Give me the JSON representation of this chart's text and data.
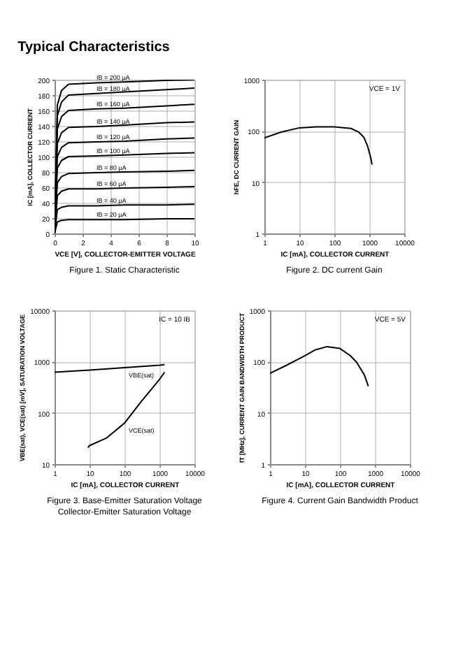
{
  "chart_data": [
    {
      "type": "line",
      "title": "Figure 1. Static Characteristic",
      "xlabel": "VCE [V], COLLECTOR-EMITTER VOLTAGE",
      "ylabel": "IC [mA], COLLECTOR CURRENT",
      "annotations": [
        "Typical Characteristics"
      ],
      "xlim": [
        0,
        10
      ],
      "ylim": [
        0,
        200
      ],
      "xticks": [
        0,
        2,
        4,
        6,
        8,
        10
      ],
      "yticks": [
        0,
        20,
        40,
        60,
        80,
        100,
        120,
        140,
        160,
        180,
        200
      ],
      "grid": true,
      "x": [
        0,
        0.2,
        0.5,
        1,
        3,
        5,
        8,
        10
      ],
      "series": [
        {
          "name": "IB = 20 µA",
          "color": "#000000",
          "values": [
            0,
            15,
            17,
            18,
            18,
            18,
            19,
            19
          ]
        },
        {
          "name": "IB = 40 µA",
          "color": "#000000",
          "values": [
            0,
            31,
            34,
            36,
            36,
            37,
            37,
            38
          ]
        },
        {
          "name": "IB = 60 µA",
          "color": "#000000",
          "values": [
            0,
            49,
            55,
            58,
            58,
            59,
            60,
            61
          ]
        },
        {
          "name": "IB = 80 µA",
          "color": "#000000",
          "values": [
            0,
            66,
            74,
            78,
            79,
            80,
            81,
            82
          ]
        },
        {
          "name": "IB = 100 µA",
          "color": "#000000",
          "values": [
            0,
            85,
            95,
            100,
            101,
            102,
            104,
            105
          ]
        },
        {
          "name": "IB = 120 µA",
          "color": "#000000",
          "values": [
            0,
            100,
            112,
            118,
            119,
            120,
            123,
            124
          ]
        },
        {
          "name": "IB = 140 µA",
          "color": "#000000",
          "values": [
            0,
            117,
            131,
            138,
            139,
            141,
            144,
            145
          ]
        },
        {
          "name": "IB = 160 µA",
          "color": "#000000",
          "values": [
            0,
            136,
            152,
            160,
            162,
            163,
            166,
            168
          ]
        },
        {
          "name": "IB = 180 µA",
          "color": "#000000",
          "values": [
            0,
            153,
            171,
            180,
            182,
            184,
            187,
            189
          ]
        },
        {
          "name": "IB = 200 µA",
          "color": "#000000",
          "values": [
            0,
            167,
            186,
            194,
            196,
            197,
            199,
            200
          ]
        }
      ]
    },
    {
      "type": "line",
      "title": "Figure 2. DC current Gain",
      "xlabel": "IC [mA], COLLECTOR CURRENT",
      "ylabel": "hFE, DC CURRENT GAIN",
      "annotations": [
        "VCE = 1V"
      ],
      "xlim": [
        1,
        10000
      ],
      "ylim": [
        1,
        1000
      ],
      "xticks": [
        1,
        10,
        100,
        1000,
        10000
      ],
      "yticks": [
        1,
        10,
        100,
        1000
      ],
      "log": "xy",
      "grid": true,
      "series": [
        {
          "color": "#000000",
          "x": [
            1,
            3,
            10,
            30,
            100,
            300,
            500,
            700,
            900,
            1100,
            1200
          ],
          "values": [
            73,
            95,
            115,
            120,
            120,
            112,
            95,
            75,
            50,
            30,
            22
          ]
        }
      ]
    },
    {
      "type": "line",
      "title": "Figure 3. Base-Emitter Saturation Voltage\nCollector-Emitter Saturation Voltage",
      "xlabel": "IC [mA], COLLECTOR CURRENT",
      "ylabel": "VBE(sat), VCE(sat) [mV], SATURATION VOLTAGE",
      "annotations": [
        "IC = 10 IB"
      ],
      "xlim": [
        1,
        10000
      ],
      "ylim": [
        10,
        10000
      ],
      "xticks": [
        1,
        10,
        100,
        1000,
        10000
      ],
      "yticks": [
        10,
        100,
        1000,
        10000
      ],
      "log": "xy",
      "grid": true,
      "series": [
        {
          "name": "VBE(sat)",
          "color": "#000000",
          "x": [
            1,
            10,
            100,
            1000,
            1400
          ],
          "values": [
            620,
            680,
            760,
            850,
            870
          ]
        },
        {
          "name": "VCE(sat)",
          "color": "#000000",
          "x": [
            9,
            10,
            30,
            100,
            300,
            1000,
            1400
          ],
          "values": [
            21,
            23,
            32,
            63,
            166,
            450,
            620
          ]
        }
      ]
    },
    {
      "type": "line",
      "title": "Figure 4. Current Gain Bandwidth Product",
      "xlabel": "IC [mA], COLLECTOR CURRENT",
      "ylabel": "fT [MHz], CURRENT GAIN BANDWIDTH PRODUCT",
      "annotations": [
        "VCE = 5V"
      ],
      "xlim": [
        1,
        10000
      ],
      "ylim": [
        1,
        1000
      ],
      "xticks": [
        1,
        10,
        100,
        1000,
        10000
      ],
      "yticks": [
        1,
        10,
        100,
        1000
      ],
      "log": "xy",
      "grid": true,
      "series": [
        {
          "color": "#000000",
          "x": [
            1,
            3,
            10,
            20,
            43,
            100,
            200,
            300,
            500,
            650
          ],
          "values": [
            59,
            85,
            130,
            170,
            196,
            180,
            130,
            97,
            55,
            33
          ]
        }
      ]
    }
  ]
}
